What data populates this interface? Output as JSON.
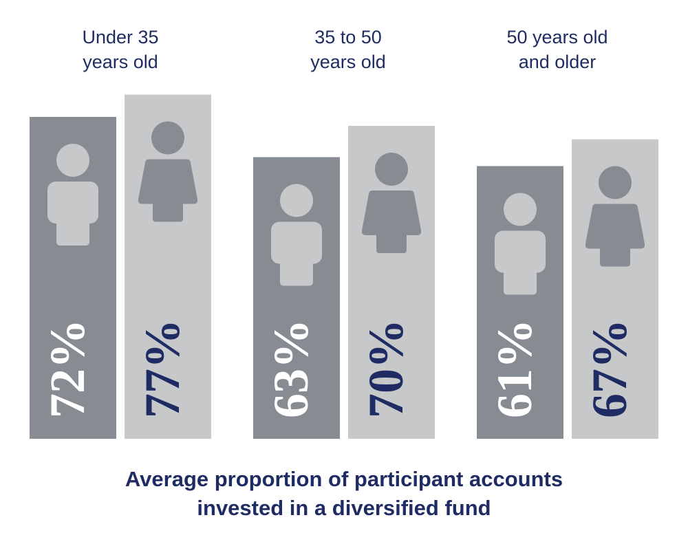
{
  "colors": {
    "male_bar": "#878c92",
    "female_bar": "#c7c8ca",
    "male_icon": "#c7c8ca",
    "female_icon": "#878c92",
    "male_text": "#ffffff",
    "female_text": "#1f2c63",
    "label_text": "#1f2c63"
  },
  "icons": {
    "male": "male-person-icon",
    "female": "female-person-icon"
  },
  "groups": [
    {
      "label": "Under 35\nyears old"
    },
    {
      "label": "35 to 50\nyears old"
    },
    {
      "label": "50 years old\nand older"
    }
  ],
  "caption": "Average proportion of participant accounts\ninvested in a diversified fund",
  "chart_data": {
    "type": "bar",
    "categories": [
      "Under 35 years old",
      "35 to 50 years old",
      "50 years old and older"
    ],
    "series": [
      {
        "values": [
          72,
          63,
          61
        ],
        "labels": [
          "72%",
          "63%",
          "61%"
        ]
      },
      {
        "values": [
          77,
          70,
          67
        ],
        "labels": [
          "77%",
          "70%",
          "67%"
        ]
      }
    ],
    "title": "Average proportion of participant accounts invested in a diversified fund",
    "unit": "%"
  }
}
